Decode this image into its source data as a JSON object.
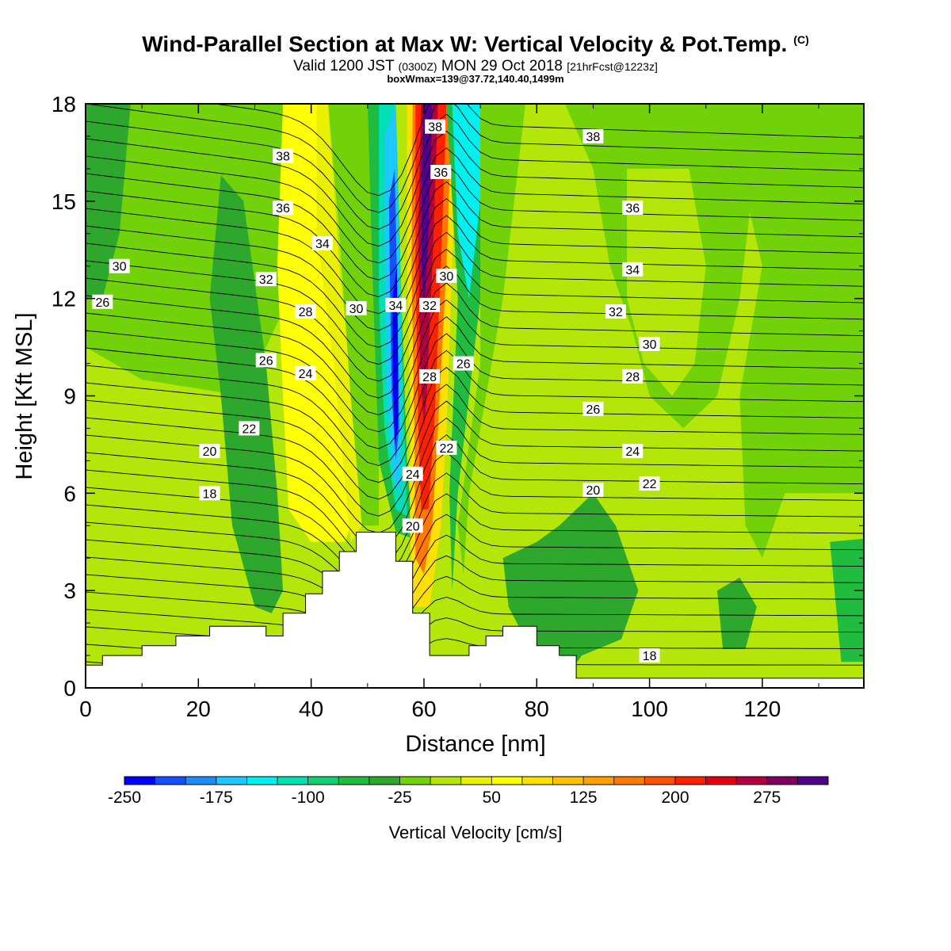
{
  "title": {
    "main": "Wind-Parallel Section at Max W: Vertical Velocity & Pot.Temp.",
    "copyright": "(C)",
    "valid_prefix": "Valid 1200 JST",
    "valid_zulu": "(0300Z)",
    "valid_date": "MON 29 Oct 2018",
    "forecast": "[21hrFcst@1223z]",
    "boxmax": "boxWmax=139@37.72,140.40,1499m"
  },
  "chart_data": {
    "type": "heatmap",
    "xlabel": "Distance [nm]",
    "ylabel": "Height [Kft MSL]",
    "xlim": [
      0,
      138
    ],
    "ylim": [
      0,
      18
    ],
    "x_ticks": [
      "0",
      "20",
      "40",
      "60",
      "80",
      "100",
      "120"
    ],
    "y_ticks": [
      "0",
      "3",
      "6",
      "9",
      "12",
      "15",
      "18"
    ],
    "colorbar": {
      "label": "Vertical Velocity [cm/s]",
      "tick_labels": [
        "-250",
        "-175",
        "-100",
        "-25",
        "50",
        "125",
        "200",
        "275"
      ],
      "levels": [
        -250,
        -225,
        -200,
        -175,
        -150,
        -125,
        -100,
        -75,
        -50,
        -25,
        0,
        25,
        50,
        75,
        100,
        125,
        150,
        175,
        200,
        225,
        250,
        275,
        300
      ],
      "colors": [
        "#0000ff",
        "#1450ff",
        "#1e8cff",
        "#1ec8ff",
        "#00f0f0",
        "#00e0b4",
        "#10d070",
        "#20bc40",
        "#2ea82c",
        "#72d20a",
        "#b4e60a",
        "#eaf000",
        "#ffff00",
        "#ffe000",
        "#ffc000",
        "#ffa000",
        "#ff7800",
        "#ff5000",
        "#ff2000",
        "#e00010",
        "#b00040",
        "#800060",
        "#50008c"
      ]
    },
    "theta_contour_labels": [
      {
        "value": "38",
        "x": 35,
        "y": 16.4
      },
      {
        "value": "36",
        "x": 35,
        "y": 14.8
      },
      {
        "value": "34",
        "x": 42,
        "y": 13.7
      },
      {
        "value": "30",
        "x": 6,
        "y": 13.0
      },
      {
        "value": "32",
        "x": 32,
        "y": 12.6
      },
      {
        "value": "26",
        "x": 3,
        "y": 11.9
      },
      {
        "value": "28",
        "x": 39,
        "y": 11.6
      },
      {
        "value": "30",
        "x": 48,
        "y": 11.7
      },
      {
        "value": "34",
        "x": 55,
        "y": 11.8
      },
      {
        "value": "32",
        "x": 61,
        "y": 11.8
      },
      {
        "value": "26",
        "x": 32,
        "y": 10.1
      },
      {
        "value": "24",
        "x": 39,
        "y": 9.7
      },
      {
        "value": "28",
        "x": 61,
        "y": 9.6
      },
      {
        "value": "26",
        "x": 67,
        "y": 10.0
      },
      {
        "value": "22",
        "x": 29,
        "y": 8.0
      },
      {
        "value": "20",
        "x": 22,
        "y": 7.3
      },
      {
        "value": "22",
        "x": 64,
        "y": 7.4
      },
      {
        "value": "24",
        "x": 58,
        "y": 6.6
      },
      {
        "value": "18",
        "x": 22,
        "y": 6.0
      },
      {
        "value": "20",
        "x": 58,
        "y": 5.0
      },
      {
        "value": "38",
        "x": 62,
        "y": 17.3
      },
      {
        "value": "36",
        "x": 63,
        "y": 15.9
      },
      {
        "value": "30",
        "x": 64,
        "y": 12.7
      },
      {
        "value": "38",
        "x": 90,
        "y": 17.0
      },
      {
        "value": "36",
        "x": 97,
        "y": 14.8
      },
      {
        "value": "34",
        "x": 97,
        "y": 12.9
      },
      {
        "value": "32",
        "x": 94,
        "y": 11.6
      },
      {
        "value": "30",
        "x": 100,
        "y": 10.6
      },
      {
        "value": "28",
        "x": 97,
        "y": 9.6
      },
      {
        "value": "26",
        "x": 90,
        "y": 8.6
      },
      {
        "value": "24",
        "x": 97,
        "y": 7.3
      },
      {
        "value": "20",
        "x": 90,
        "y": 6.1
      },
      {
        "value": "22",
        "x": 100,
        "y": 6.3
      },
      {
        "value": "18",
        "x": 100,
        "y": 1.0
      }
    ],
    "terrain": [
      [
        0,
        0.7
      ],
      [
        3,
        0.7
      ],
      [
        3,
        1.0
      ],
      [
        10,
        1.0
      ],
      [
        10,
        1.3
      ],
      [
        16,
        1.3
      ],
      [
        16,
        1.6
      ],
      [
        22,
        1.6
      ],
      [
        22,
        1.9
      ],
      [
        32,
        1.9
      ],
      [
        32,
        1.6
      ],
      [
        35,
        1.6
      ],
      [
        35,
        2.3
      ],
      [
        39,
        2.3
      ],
      [
        39,
        2.9
      ],
      [
        42,
        2.9
      ],
      [
        42,
        3.6
      ],
      [
        45,
        3.6
      ],
      [
        45,
        4.2
      ],
      [
        48,
        4.2
      ],
      [
        48,
        4.8
      ],
      [
        55,
        4.8
      ],
      [
        55,
        3.9
      ],
      [
        58,
        3.9
      ],
      [
        58,
        2.3
      ],
      [
        61,
        2.3
      ],
      [
        61,
        1.0
      ],
      [
        68,
        1.0
      ],
      [
        68,
        1.3
      ],
      [
        71,
        1.3
      ],
      [
        71,
        1.6
      ],
      [
        74,
        1.6
      ],
      [
        74,
        1.9
      ],
      [
        80,
        1.9
      ],
      [
        80,
        1.3
      ],
      [
        84,
        1.3
      ],
      [
        84,
        1.0
      ],
      [
        87,
        1.0
      ],
      [
        87,
        0.3
      ],
      [
        138,
        0.3
      ]
    ]
  }
}
